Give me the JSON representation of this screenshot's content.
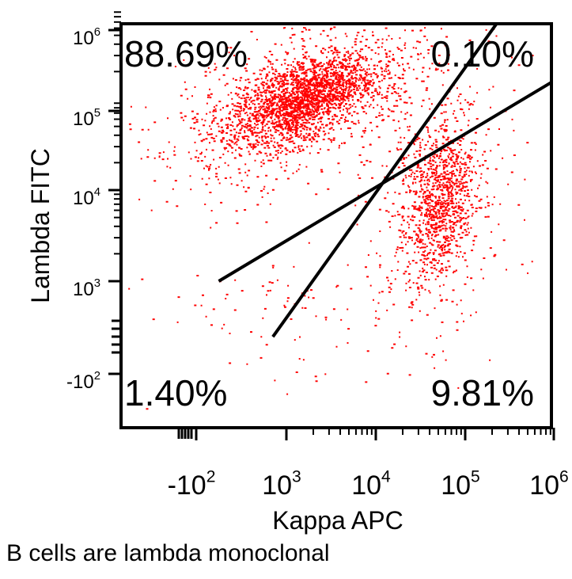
{
  "chart_data": {
    "type": "scatter",
    "title": "",
    "xlabel": "Kappa APC",
    "ylabel": "Lambda FITC",
    "x_ticks": [
      {
        "base": "-10",
        "exp": "2",
        "value": -100
      },
      {
        "base": "10",
        "exp": "3",
        "value": 1000
      },
      {
        "base": "10",
        "exp": "4",
        "value": 10000
      },
      {
        "base": "10",
        "exp": "5",
        "value": 100000
      },
      {
        "base": "10",
        "exp": "6",
        "value": 1000000
      }
    ],
    "y_ticks": [
      {
        "base": "10",
        "exp": "6",
        "value": 1000000
      },
      {
        "base": "10",
        "exp": "5",
        "value": 100000
      },
      {
        "base": "10",
        "exp": "4",
        "value": 10000
      },
      {
        "base": "10",
        "exp": "3",
        "value": 1000
      },
      {
        "base": "-10",
        "exp": "2",
        "value": -100
      }
    ],
    "quadrants": [
      {
        "name": "upper-left",
        "label": "88.69%",
        "value": 88.69
      },
      {
        "name": "upper-right",
        "label": "0.10%",
        "value": 0.1
      },
      {
        "name": "lower-left",
        "label": "1.40%",
        "value": 1.4
      },
      {
        "name": "lower-right",
        "label": "9.81%",
        "value": 9.81
      }
    ],
    "populations": [
      {
        "name": "lambda-positive",
        "x_center": 1500,
        "y_center": 100000,
        "fraction": 0.8869
      },
      {
        "name": "kappa-positive",
        "x_center": 50000,
        "y_center": 8000,
        "fraction": 0.0981
      },
      {
        "name": "double-negative",
        "x_center": 600,
        "y_center": 500,
        "fraction": 0.014
      }
    ],
    "gate_lines": [
      {
        "name": "steep-gate",
        "from": {
          "x": 700,
          "y": -200
        },
        "to": {
          "x": 300000,
          "y": 1000000
        }
      },
      {
        "name": "shallow-gate",
        "from": {
          "x": -500,
          "y": 1000
        },
        "to": {
          "x": 1000000,
          "y": 160000
        }
      }
    ],
    "colors": {
      "points": "#ff0000",
      "axis": "#000000",
      "gate": "#000000"
    },
    "grid": false,
    "legend": "none"
  },
  "caption": "B cells are lambda monoclonal"
}
